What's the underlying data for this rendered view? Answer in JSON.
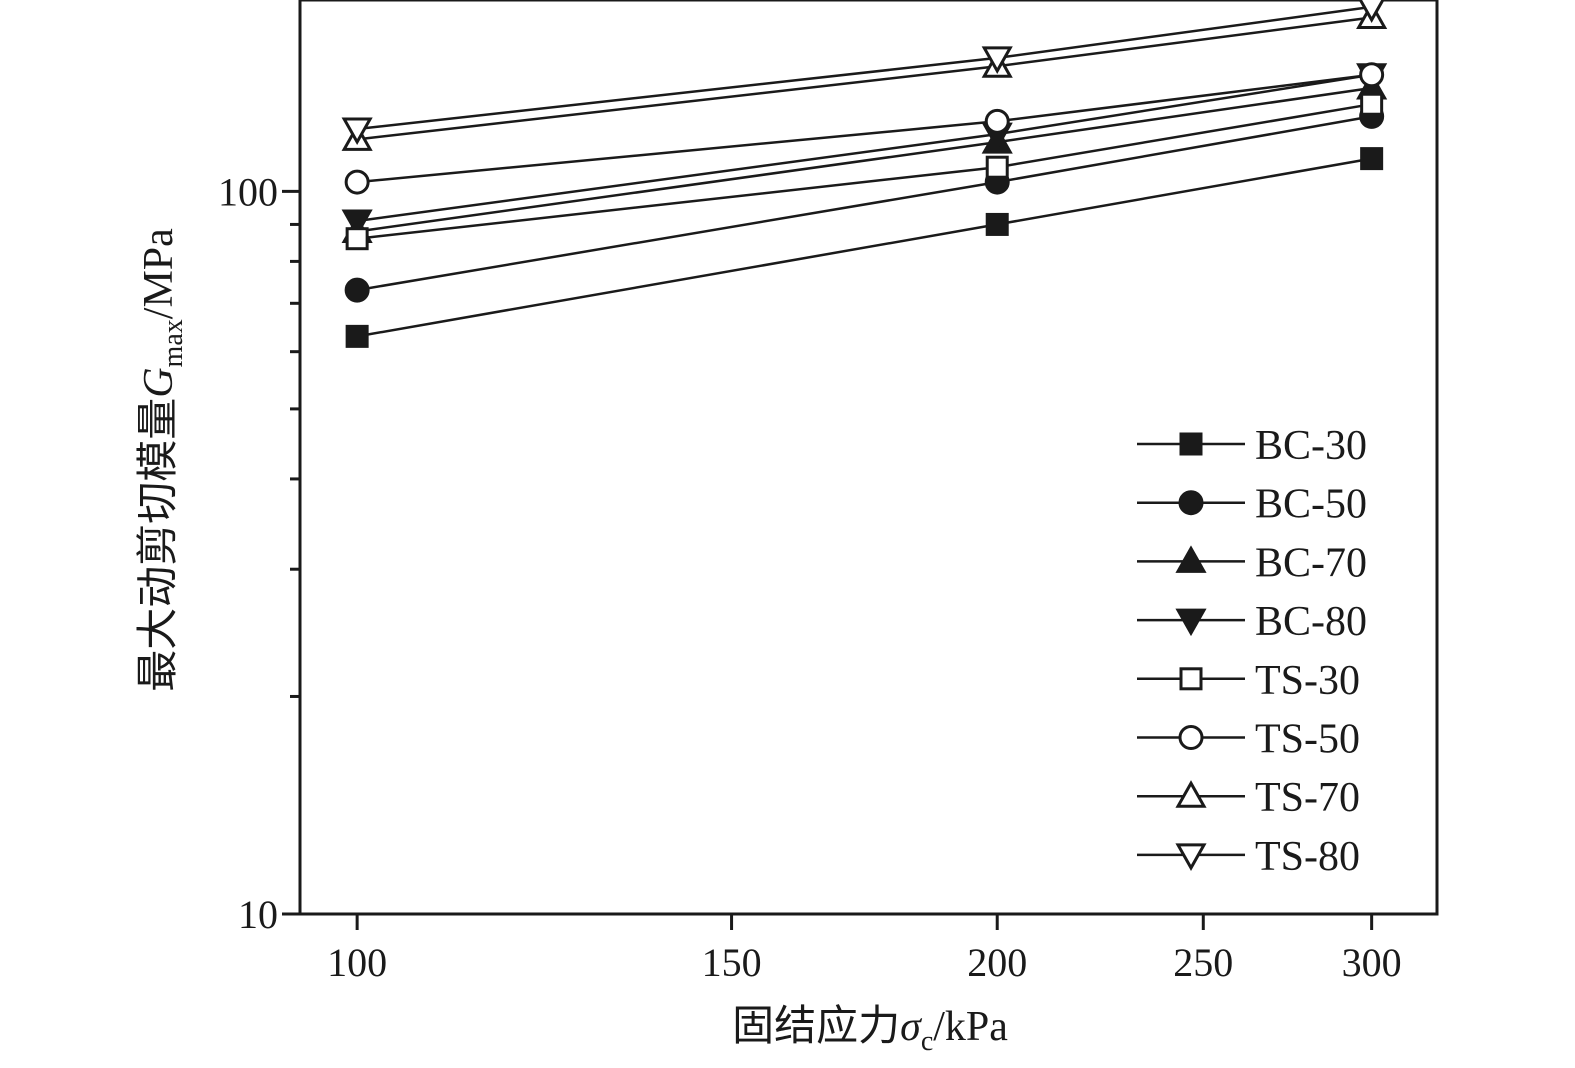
{
  "chart_data": {
    "type": "line",
    "xlabel": "固结应力σc/kPa",
    "xlabel_main": "固结应力",
    "xlabel_symbol": "σ",
    "xlabel_subscript": "c",
    "xlabel_unit": "/kPa",
    "ylabel": "最大动剪切模量Gmax/MPa",
    "ylabel_main": "最大动剪切模量",
    "ylabel_symbol": "G",
    "ylabel_subscript": "max",
    "ylabel_unit": "/MPa",
    "xscale": "log",
    "yscale": "log",
    "xlim": [
      94,
      322
    ],
    "ylim": [
      10,
      184
    ],
    "x_ticks": [
      100,
      150,
      200,
      250,
      300
    ],
    "x_tick_labels": [
      "100",
      "150",
      "200",
      "250",
      "300"
    ],
    "y_major_ticks": [
      10,
      100
    ],
    "y_major_labels": [
      "10",
      "100"
    ],
    "y_minor_ticks": [
      20,
      30,
      40,
      50,
      60,
      70,
      80,
      90
    ],
    "legend_position": "bottom-right",
    "grid": false,
    "x": [
      100,
      200,
      300
    ],
    "series": [
      {
        "name": "BC-30",
        "marker": "square-filled",
        "values": [
          63,
          90,
          111
        ]
      },
      {
        "name": "BC-50",
        "marker": "circle-filled",
        "values": [
          73,
          103,
          127
        ]
      },
      {
        "name": "BC-70",
        "marker": "triangle-up-filled",
        "values": [
          88,
          117,
          139
        ]
      },
      {
        "name": "BC-80",
        "marker": "triangle-down-filled",
        "values": [
          91,
          120,
          145
        ]
      },
      {
        "name": "TS-30",
        "marker": "square-open",
        "values": [
          86,
          108,
          132
        ]
      },
      {
        "name": "TS-50",
        "marker": "circle-open",
        "values": [
          103,
          125,
          145
        ]
      },
      {
        "name": "TS-70",
        "marker": "triangle-up-open",
        "values": [
          118,
          149,
          174
        ]
      },
      {
        "name": "TS-80",
        "marker": "triangle-down-open",
        "values": [
          122,
          153,
          180
        ]
      }
    ]
  }
}
